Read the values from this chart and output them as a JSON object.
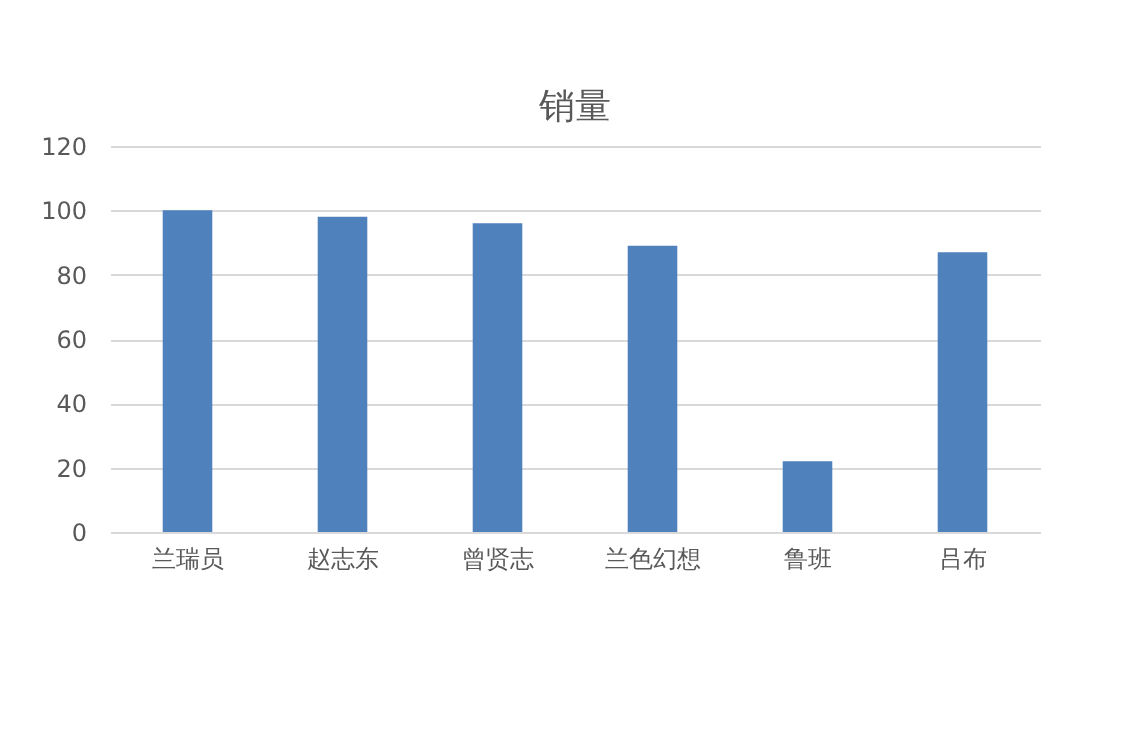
{
  "chart_data": {
    "type": "bar",
    "title": "销量",
    "categories": [
      "兰瑞员",
      "赵志东",
      "曾贤志",
      "兰色幻想",
      "鲁班",
      "吕布"
    ],
    "values": [
      100,
      98,
      96,
      89,
      22,
      87
    ],
    "color": "#4f81bd",
    "ylim": [
      0,
      120
    ],
    "yticks": [
      0,
      20,
      40,
      60,
      80,
      100,
      120
    ],
    "grid": "y"
  }
}
